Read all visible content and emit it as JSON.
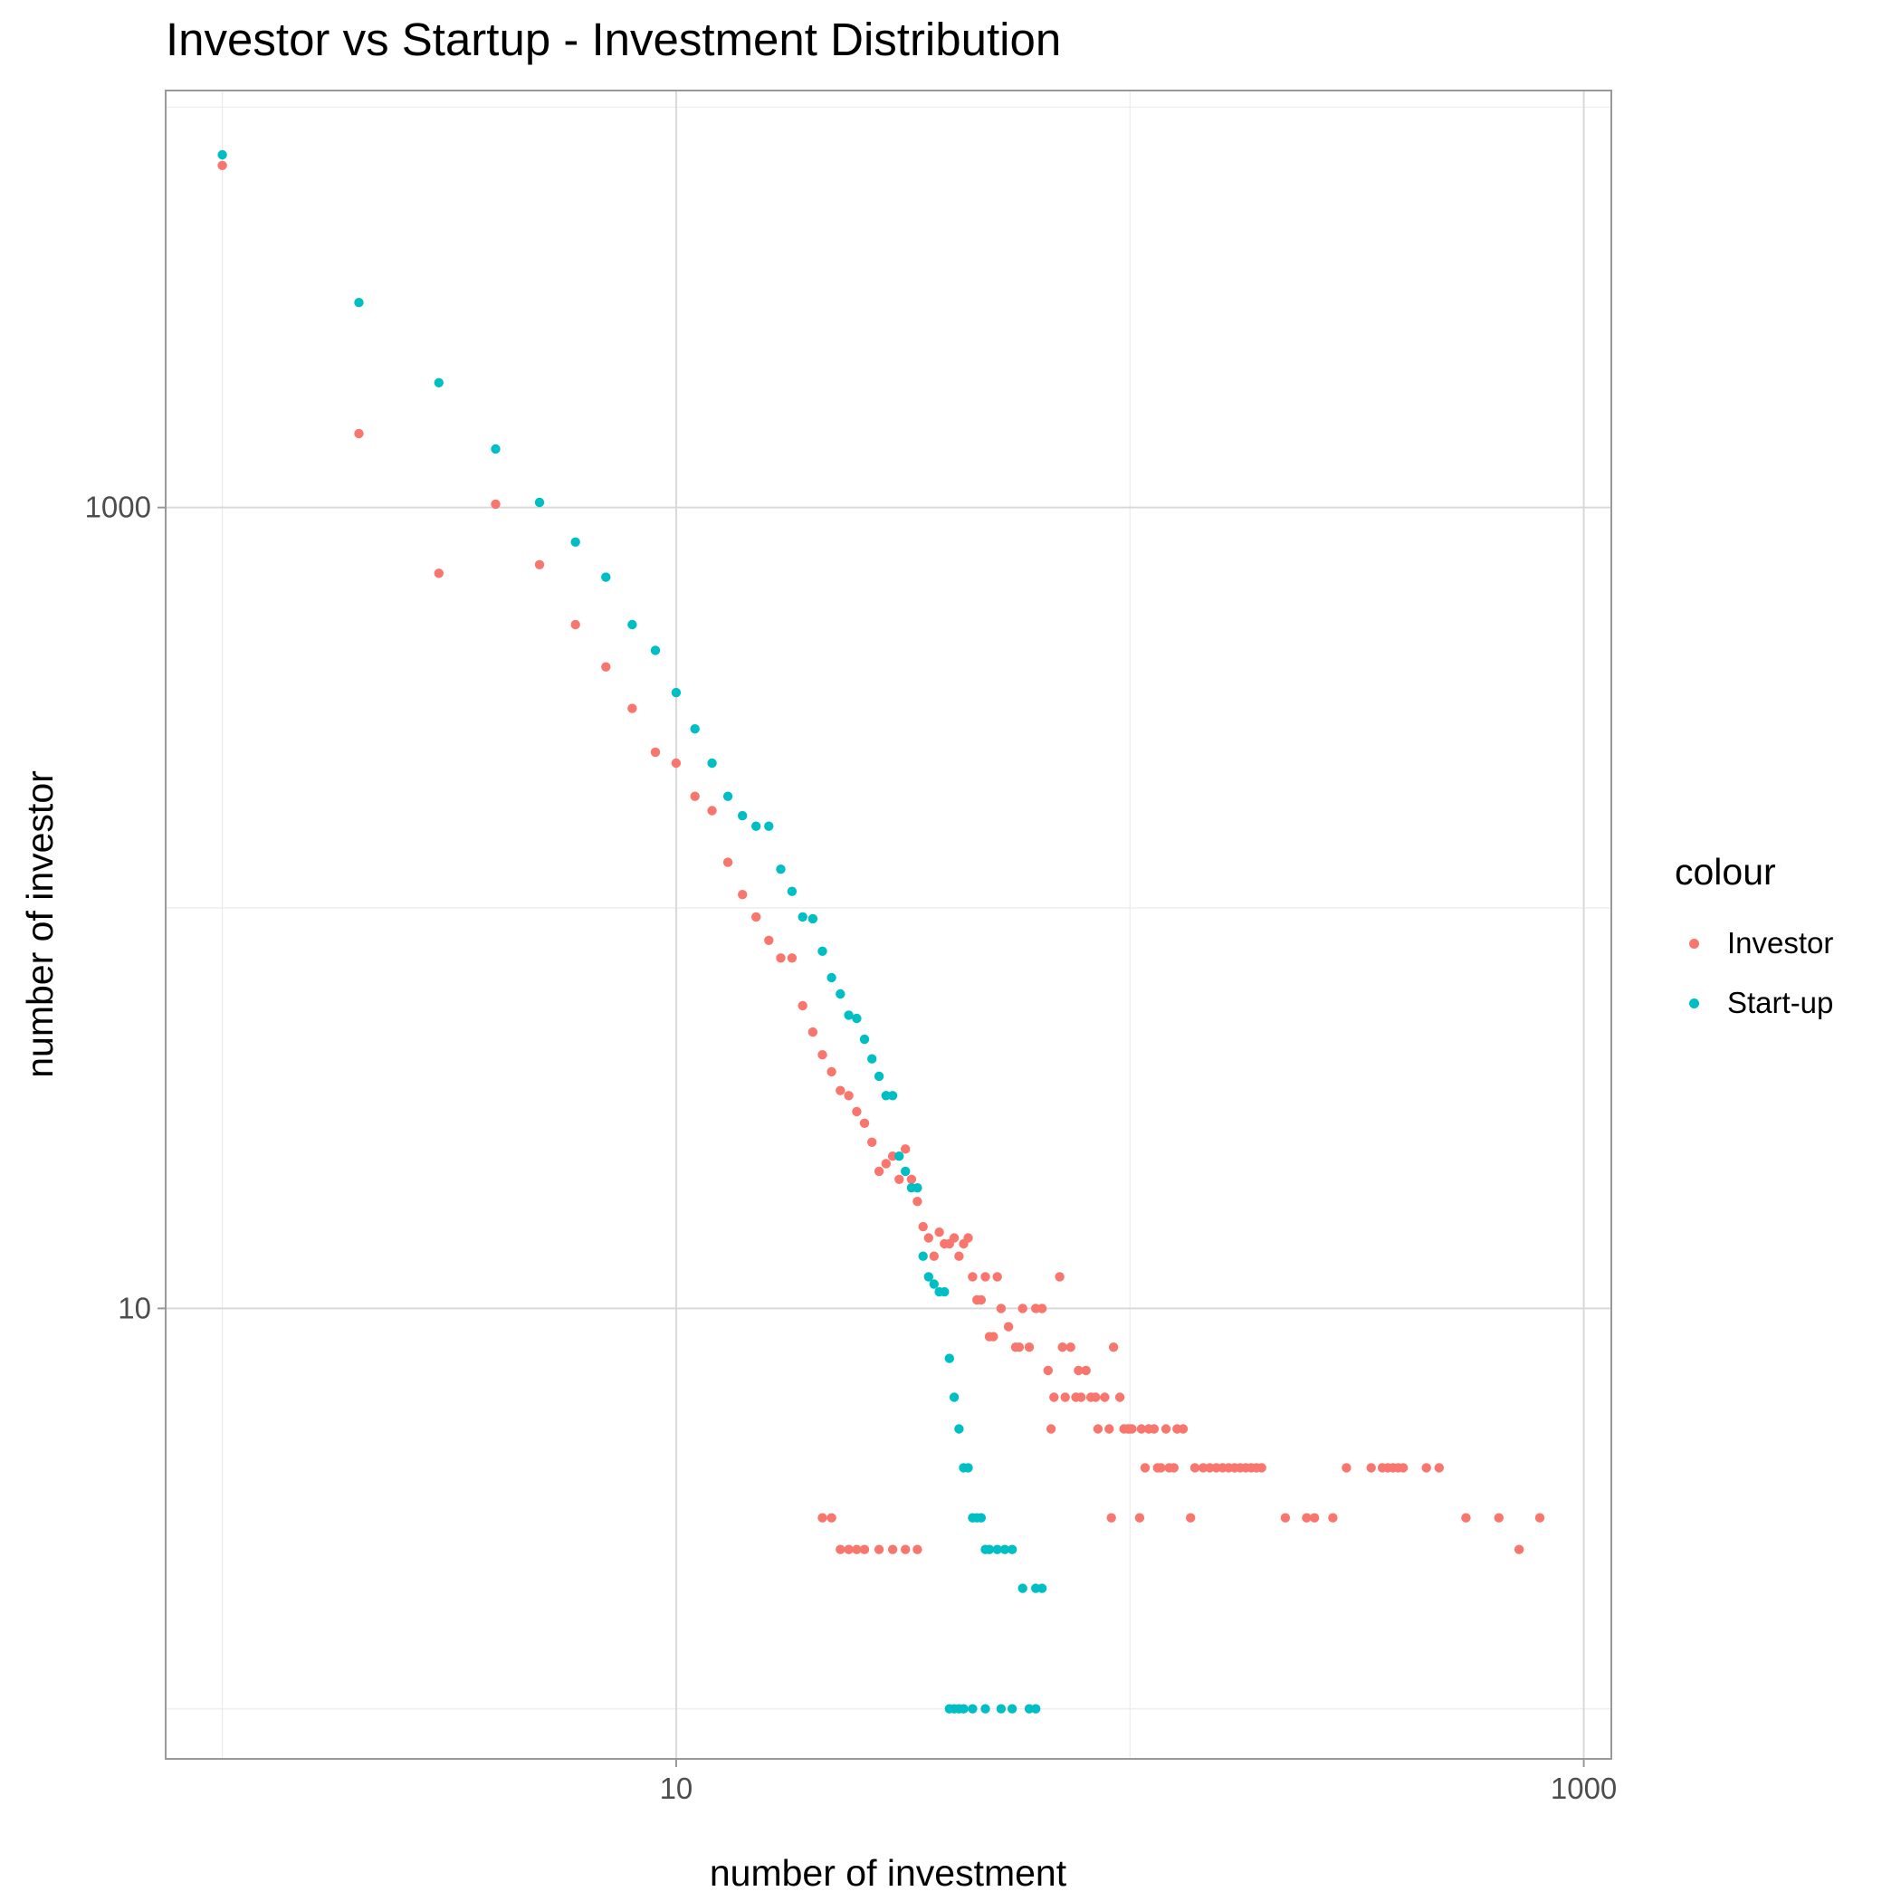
{
  "chart_data": {
    "type": "scatter",
    "title": "Investor vs Startup - Investment Distribution",
    "xlabel": "number of investment",
    "ylabel": "number of investor",
    "x_scale": "log10",
    "y_scale": "log10",
    "xlim": [
      0.75,
      1150
    ],
    "ylim": [
      0.75,
      11000
    ],
    "x_ticks": [
      10,
      1000
    ],
    "x_tick_labels": [
      "10",
      "1000"
    ],
    "y_ticks": [
      10,
      1000
    ],
    "y_tick_labels": [
      "10",
      "1000"
    ],
    "grid": true,
    "legend": {
      "title": "colour",
      "position": "right"
    },
    "series": [
      {
        "name": "Investor",
        "color": "#F8766D",
        "points": [
          [
            1,
            7150
          ],
          [
            2,
            1530
          ],
          [
            3,
            685
          ],
          [
            4,
            1020
          ],
          [
            5,
            720
          ],
          [
            6,
            510
          ],
          [
            7,
            400
          ],
          [
            8,
            315
          ],
          [
            9,
            245
          ],
          [
            10,
            230
          ],
          [
            11,
            190
          ],
          [
            12,
            175
          ],
          [
            13,
            130
          ],
          [
            14,
            108
          ],
          [
            15,
            95
          ],
          [
            16,
            83
          ],
          [
            17,
            75
          ],
          [
            18,
            75
          ],
          [
            19,
            57
          ],
          [
            20,
            49
          ],
          [
            21,
            43
          ],
          [
            22,
            39
          ],
          [
            23,
            35
          ],
          [
            24,
            34
          ],
          [
            25,
            31
          ],
          [
            26,
            29
          ],
          [
            27,
            26
          ],
          [
            28,
            22
          ],
          [
            29,
            23
          ],
          [
            30,
            24
          ],
          [
            31,
            21
          ],
          [
            32,
            25
          ],
          [
            33,
            21
          ],
          [
            34,
            18.5
          ],
          [
            35,
            16
          ],
          [
            36,
            15
          ],
          [
            37,
            13.5
          ],
          [
            38,
            15.5
          ],
          [
            39,
            14.5
          ],
          [
            40,
            14.5
          ],
          [
            41,
            15
          ],
          [
            42,
            13.5
          ],
          [
            43,
            14.5
          ],
          [
            44,
            15
          ],
          [
            45,
            12
          ],
          [
            46,
            10.5
          ],
          [
            47,
            10.5
          ],
          [
            48,
            12
          ],
          [
            49,
            8.5
          ],
          [
            50,
            8.5
          ],
          [
            51,
            12
          ],
          [
            52,
            10
          ],
          [
            54,
            9
          ],
          [
            56,
            8
          ],
          [
            57,
            8
          ],
          [
            58,
            10
          ],
          [
            60,
            8
          ],
          [
            62,
            10
          ],
          [
            64,
            10
          ],
          [
            66,
            7
          ],
          [
            67,
            5
          ],
          [
            68,
            6
          ],
          [
            70,
            12
          ],
          [
            71,
            8
          ],
          [
            72,
            6
          ],
          [
            74,
            8
          ],
          [
            76,
            6
          ],
          [
            77,
            7
          ],
          [
            78,
            6
          ],
          [
            80,
            7
          ],
          [
            82,
            6
          ],
          [
            84,
            6
          ],
          [
            85,
            5
          ],
          [
            88,
            6
          ],
          [
            90,
            5
          ],
          [
            91,
            3
          ],
          [
            92,
            8
          ],
          [
            95,
            6
          ],
          [
            97,
            5
          ],
          [
            99,
            5
          ],
          [
            100,
            5
          ],
          [
            101,
            5
          ],
          [
            105,
            3
          ],
          [
            106,
            5
          ],
          [
            108,
            4
          ],
          [
            110,
            5
          ],
          [
            113,
            5
          ],
          [
            115,
            4
          ],
          [
            117,
            4
          ],
          [
            120,
            5
          ],
          [
            122,
            4
          ],
          [
            125,
            4
          ],
          [
            127,
            5
          ],
          [
            131,
            5
          ],
          [
            136,
            3
          ],
          [
            139,
            4
          ],
          [
            145,
            4
          ],
          [
            150,
            4
          ],
          [
            155,
            4
          ],
          [
            160,
            4
          ],
          [
            165,
            4
          ],
          [
            170,
            4
          ],
          [
            175,
            4
          ],
          [
            180,
            4
          ],
          [
            185,
            4
          ],
          [
            190,
            4
          ],
          [
            195,
            4
          ],
          [
            220,
            3
          ],
          [
            245,
            3
          ],
          [
            255,
            3
          ],
          [
            280,
            3
          ],
          [
            300,
            4
          ],
          [
            340,
            4
          ],
          [
            360,
            4
          ],
          [
            370,
            4
          ],
          [
            380,
            4
          ],
          [
            390,
            4
          ],
          [
            400,
            4
          ],
          [
            450,
            4
          ],
          [
            480,
            4
          ],
          [
            550,
            3
          ],
          [
            650,
            3
          ],
          [
            720,
            2.5
          ],
          [
            800,
            3
          ]
        ],
        "points_y1": [
          [
            21,
            3
          ],
          [
            22,
            3
          ],
          [
            23,
            2.5
          ],
          [
            24,
            2.5
          ],
          [
            25,
            2.5
          ],
          [
            26,
            2.5
          ],
          [
            28,
            2.5
          ],
          [
            30,
            2.5
          ],
          [
            32,
            2.5
          ],
          [
            34,
            2.5
          ]
        ]
      },
      {
        "name": "Start-up",
        "color": "#00BFC4",
        "points": [
          [
            1,
            7600
          ],
          [
            2,
            3250
          ],
          [
            3,
            2050
          ],
          [
            4,
            1400
          ],
          [
            5,
            1030
          ],
          [
            6,
            820
          ],
          [
            7,
            670
          ],
          [
            8,
            510
          ],
          [
            9,
            440
          ],
          [
            10,
            345
          ],
          [
            11,
            280
          ],
          [
            12,
            230
          ],
          [
            13,
            190
          ],
          [
            14,
            170
          ],
          [
            15,
            160
          ],
          [
            16,
            160
          ],
          [
            17,
            125
          ],
          [
            18,
            110
          ],
          [
            19,
            95
          ],
          [
            20,
            94
          ],
          [
            21,
            78
          ],
          [
            22,
            67
          ],
          [
            23,
            61
          ],
          [
            24,
            54
          ],
          [
            25,
            53
          ],
          [
            26,
            47
          ],
          [
            27,
            42
          ],
          [
            28,
            38
          ],
          [
            29,
            34
          ],
          [
            30,
            34
          ],
          [
            31,
            24
          ],
          [
            32,
            22
          ],
          [
            33,
            20
          ],
          [
            34,
            20
          ],
          [
            35,
            13.5
          ],
          [
            36,
            12
          ],
          [
            37,
            11.5
          ],
          [
            38,
            11
          ],
          [
            39,
            11
          ],
          [
            40,
            7.5
          ],
          [
            41,
            6
          ],
          [
            42,
            5
          ],
          [
            43,
            4
          ],
          [
            44,
            4
          ],
          [
            45,
            3
          ],
          [
            46,
            3
          ],
          [
            47,
            3
          ],
          [
            48,
            2.5
          ],
          [
            49,
            2.5
          ],
          [
            51,
            2.5
          ],
          [
            53,
            2.5
          ],
          [
            55,
            2.5
          ],
          [
            58,
            2
          ],
          [
            62,
            2
          ],
          [
            64,
            2
          ]
        ],
        "points_y1": [
          [
            40,
            1
          ],
          [
            41,
            1
          ],
          [
            42,
            1
          ],
          [
            43,
            1
          ],
          [
            45,
            1
          ],
          [
            48,
            1
          ],
          [
            52,
            1
          ],
          [
            55,
            1
          ],
          [
            60,
            1
          ],
          [
            62,
            1
          ]
        ]
      }
    ]
  }
}
